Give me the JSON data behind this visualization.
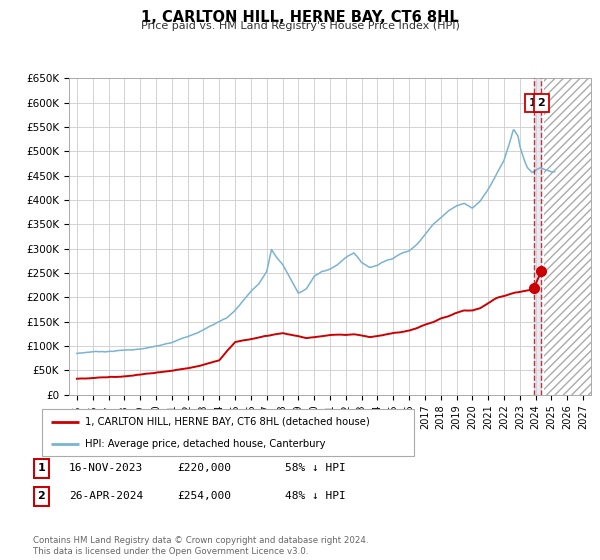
{
  "title": "1, CARLTON HILL, HERNE BAY, CT6 8HL",
  "subtitle": "Price paid vs. HM Land Registry's House Price Index (HPI)",
  "ylim": [
    0,
    650000
  ],
  "xlim": [
    1994.5,
    2027.5
  ],
  "yticks": [
    0,
    50000,
    100000,
    150000,
    200000,
    250000,
    300000,
    350000,
    400000,
    450000,
    500000,
    550000,
    600000,
    650000
  ],
  "ytick_labels": [
    "£0",
    "£50K",
    "£100K",
    "£150K",
    "£200K",
    "£250K",
    "£300K",
    "£350K",
    "£400K",
    "£450K",
    "£500K",
    "£550K",
    "£600K",
    "£650K"
  ],
  "xticks": [
    1995,
    1996,
    1997,
    1998,
    1999,
    2000,
    2001,
    2002,
    2003,
    2004,
    2005,
    2006,
    2007,
    2008,
    2009,
    2010,
    2011,
    2012,
    2013,
    2014,
    2015,
    2016,
    2017,
    2018,
    2019,
    2020,
    2021,
    2022,
    2023,
    2024,
    2025,
    2026,
    2027
  ],
  "hpi_color": "#7ab3d4",
  "price_color": "#cc0000",
  "vline1_x": 2023.88,
  "vline2_x": 2024.32,
  "marker1_x": 2023.88,
  "marker1_y": 220000,
  "marker2_x": 2024.32,
  "marker2_y": 254000,
  "hatch_start": 2024.55,
  "legend_label_red": "1, CARLTON HILL, HERNE BAY, CT6 8HL (detached house)",
  "legend_label_blue": "HPI: Average price, detached house, Canterbury",
  "table_rows": [
    {
      "num": "1",
      "date": "16-NOV-2023",
      "price": "£220,000",
      "pct": "58% ↓ HPI"
    },
    {
      "num": "2",
      "date": "26-APR-2024",
      "price": "£254,000",
      "pct": "48% ↓ HPI"
    }
  ],
  "footnote": "Contains HM Land Registry data © Crown copyright and database right 2024.\nThis data is licensed under the Open Government Licence v3.0.",
  "background_color": "#ffffff",
  "grid_color": "#cccccc"
}
